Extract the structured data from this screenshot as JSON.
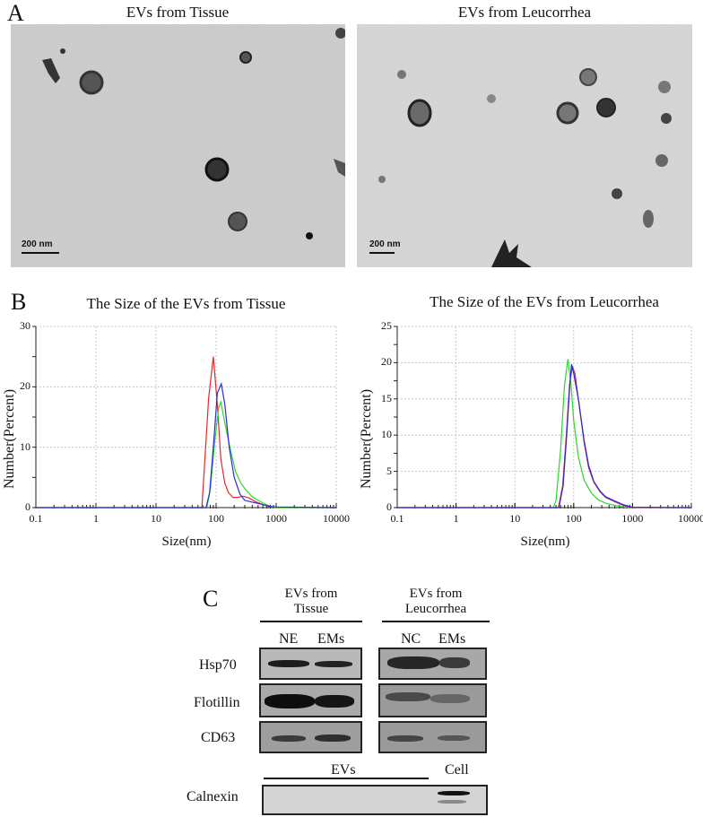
{
  "panel_a": {
    "letter": "A",
    "images": [
      {
        "title": "EVs from Tissue",
        "scale_bar": "200 nm"
      },
      {
        "title": "EVs from Leucorrhea",
        "scale_bar": "200 nm"
      }
    ]
  },
  "panel_b": {
    "letter": "B",
    "charts": [
      {
        "title": "The Size of the EVs from Tissue",
        "xlabel": "Size(nm)",
        "ylabel": "Number(Percent)",
        "xticks": [
          "0.1",
          "1",
          "10",
          "100",
          "1000",
          "10000"
        ],
        "yticks": [
          "0",
          "10",
          "20",
          "30"
        ]
      },
      {
        "title": "The Size of the EVs from Leucorrhea",
        "xlabel": "Size(nm)",
        "ylabel": "Number(Percent)",
        "xticks": [
          "0.1",
          "1",
          "10",
          "100",
          "1000",
          "10000"
        ],
        "yticks": [
          "0",
          "5",
          "10",
          "15",
          "20",
          "25"
        ]
      }
    ]
  },
  "panel_c": {
    "letter": "C",
    "groups": [
      {
        "line1": "EVs from",
        "line2": "Tissue",
        "lanes": [
          "NE",
          "EMs"
        ]
      },
      {
        "line1": "EVs from",
        "line2": "Leucorrhea",
        "lanes": [
          "NC",
          "EMs"
        ]
      }
    ],
    "rows": [
      "Hsp70",
      "Flotillin",
      "CD63"
    ],
    "calnexin": {
      "label": "Calnexin",
      "evs_label": "EVs",
      "cell_label": "Cell"
    }
  },
  "chart_data": [
    {
      "type": "line",
      "title": "The Size of the EVs from Tissue",
      "xlabel": "Size(nm)",
      "ylabel": "Number(Percent)",
      "xscale": "log",
      "xlim": [
        0.1,
        10000
      ],
      "ylim": [
        0,
        30
      ],
      "grid": true,
      "series": [
        {
          "name": "red",
          "color": "#e8262b",
          "x": [
            0.1,
            58,
            65,
            75,
            90,
            105,
            120,
            140,
            160,
            190,
            230,
            280,
            350,
            450,
            600,
            800,
            1000,
            10000
          ],
          "y": [
            0,
            0,
            8,
            18,
            25,
            17,
            8,
            4,
            2.5,
            1.7,
            1.7,
            1.9,
            1.6,
            1.0,
            0.5,
            0.1,
            0,
            0
          ]
        },
        {
          "name": "green",
          "color": "#2bd62b",
          "x": [
            0.1,
            70,
            80,
            95,
            110,
            120,
            140,
            170,
            210,
            260,
            320,
            400,
            500,
            650,
            800,
            1000,
            10000
          ],
          "y": [
            0,
            0,
            3,
            11,
            16.5,
            17.5,
            14,
            10,
            6,
            4,
            2.8,
            1.8,
            1.2,
            0.6,
            0.2,
            0,
            0
          ]
        },
        {
          "name": "blue",
          "color": "#2a2ad8",
          "x": [
            0.1,
            68,
            78,
            90,
            105,
            122,
            140,
            165,
            200,
            250,
            300,
            400,
            500,
            650,
            800,
            1000,
            10000
          ],
          "y": [
            0,
            0,
            2.5,
            10,
            19,
            20.5,
            17,
            10,
            5,
            2.2,
            1.2,
            0.9,
            0.7,
            0.4,
            0.2,
            0.1,
            0
          ]
        }
      ]
    },
    {
      "type": "line",
      "title": "The Size of the EVs from Leucorrhea",
      "xlabel": "Size(nm)",
      "ylabel": "Number(Percent)",
      "xscale": "log",
      "xlim": [
        0.1,
        10000
      ],
      "ylim": [
        0,
        25
      ],
      "grid": true,
      "series": [
        {
          "name": "green",
          "color": "#2bd62b",
          "x": [
            0.1,
            45,
            50,
            60,
            70,
            80,
            90,
            100,
            120,
            150,
            200,
            260,
            350,
            500,
            700,
            1000,
            10000
          ],
          "y": [
            0,
            0,
            1,
            8,
            17,
            20.5,
            17,
            12,
            7,
            3.8,
            2,
            1.1,
            0.6,
            0.3,
            0.1,
            0,
            0
          ]
        },
        {
          "name": "red",
          "color": "#c8283a",
          "x": [
            0.1,
            55,
            65,
            75,
            85,
            95,
            105,
            120,
            150,
            180,
            220,
            280,
            350,
            500,
            700,
            1000,
            10000
          ],
          "y": [
            0,
            0,
            3,
            10,
            17,
            19.5,
            18.5,
            15,
            9,
            5.5,
            3.5,
            2.2,
            1.4,
            0.8,
            0.3,
            0,
            0
          ]
        },
        {
          "name": "blue",
          "color": "#2a2ad8",
          "x": [
            0.1,
            56,
            66,
            76,
            86,
            92,
            100,
            120,
            150,
            180,
            220,
            280,
            350,
            500,
            700,
            1000,
            10000
          ],
          "y": [
            0,
            0,
            3,
            10,
            17,
            19.8,
            18.5,
            15,
            9.3,
            5.8,
            3.6,
            2.3,
            1.5,
            0.9,
            0.4,
            0.05,
            0
          ]
        }
      ]
    }
  ]
}
